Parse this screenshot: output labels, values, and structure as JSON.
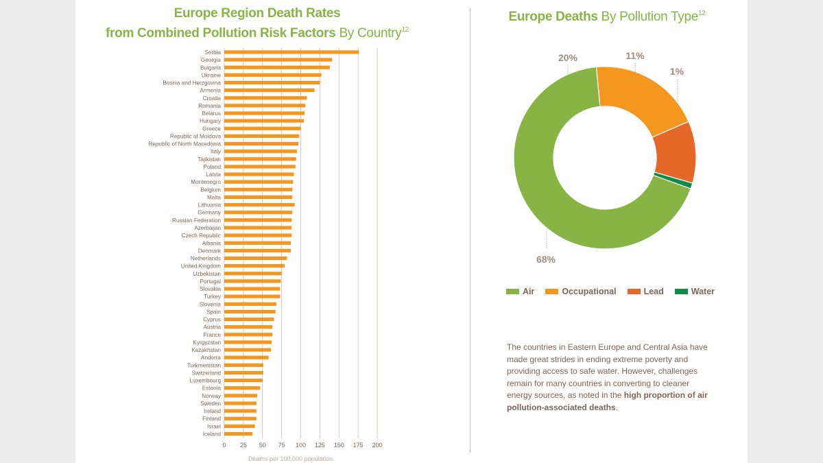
{
  "left_title": {
    "line1": "Europe Region Death Rates",
    "line2_bold": "from Combined Pollution Risk Factors",
    "line2_light": "By Country",
    "sup": "12"
  },
  "right_title": {
    "bold": "Europe Deaths",
    "light": "By Pollution Type",
    "sup": "12"
  },
  "paragraph": {
    "text": "The countries in Eastern Europe and Central Asia have made great strides in ending extreme poverty and providing access to safe water. However, challenges remain for many countries in converting to cleaner energy sources, as noted in the ",
    "emphasis": "high proportion of air pollution-associated deaths",
    "end": "."
  },
  "colors": {
    "bar": "#f5961f",
    "grid": "#d2cac2",
    "air": "#87b443",
    "occupational": "#f5961f",
    "lead": "#e56829",
    "water": "#0e8c48"
  },
  "chart_data": [
    {
      "type": "bar",
      "orientation": "horizontal",
      "title": "Europe Region Death Rates from Combined Pollution Risk Factors By Country",
      "xlabel": "Deaths per 100,000 population",
      "ylabel": "",
      "xlim": [
        0,
        200
      ],
      "xticks": [
        0,
        25,
        50,
        75,
        100,
        125,
        150,
        175,
        200
      ],
      "grid": true,
      "categories": [
        "Serbia",
        "Georgia",
        "Bulgaria",
        "Ukraine",
        "Bosnia and Herzgovina",
        "Armenia",
        "Croatia",
        "Romania",
        "Belarus",
        "Hungary",
        "Greece",
        "Republic of Moldova",
        "Republic of North Macedonia",
        "Italy",
        "Tajikistan",
        "Poland",
        "Latvia",
        "Montenegro",
        "Belgium",
        "Malta",
        "Lithuania",
        "Germany",
        "Russian Federation",
        "Azerbaijan",
        "Czech Republic",
        "Albania",
        "Denmark",
        "Netherlands",
        "United Kingdom",
        "Uzbekistan",
        "Portugal",
        "Slovakia",
        "Turkey",
        "Slovenia",
        "Spain",
        "Cyprus",
        "Austria",
        "France",
        "Kyrgyzstan",
        "Kazakhstan",
        "Andorra",
        "Turkmenistan",
        "Switzerland",
        "Luxembourg",
        "Estonia",
        "Norway",
        "Sweden",
        "Ireland",
        "Finland",
        "Israel",
        "Iceland"
      ],
      "values": [
        176,
        141,
        138,
        127,
        125,
        118,
        108,
        106,
        105,
        104,
        100,
        98,
        97,
        95,
        94,
        93,
        91,
        90,
        89,
        89,
        92,
        89,
        88,
        88,
        88,
        87,
        87,
        82,
        79,
        75,
        74,
        73,
        73,
        68,
        67,
        65,
        63,
        63,
        62,
        61,
        58,
        51,
        51,
        50,
        47,
        43,
        42,
        42,
        42,
        40,
        37
      ]
    },
    {
      "type": "pie",
      "style": "donut",
      "title": "Europe Deaths By Pollution Type",
      "categories": [
        "Air",
        "Occupational",
        "Lead",
        "Water"
      ],
      "values": [
        68,
        20,
        11,
        1
      ],
      "labels": [
        "68%",
        "20%",
        "11%",
        "1%"
      ],
      "legend": "bottom"
    }
  ]
}
